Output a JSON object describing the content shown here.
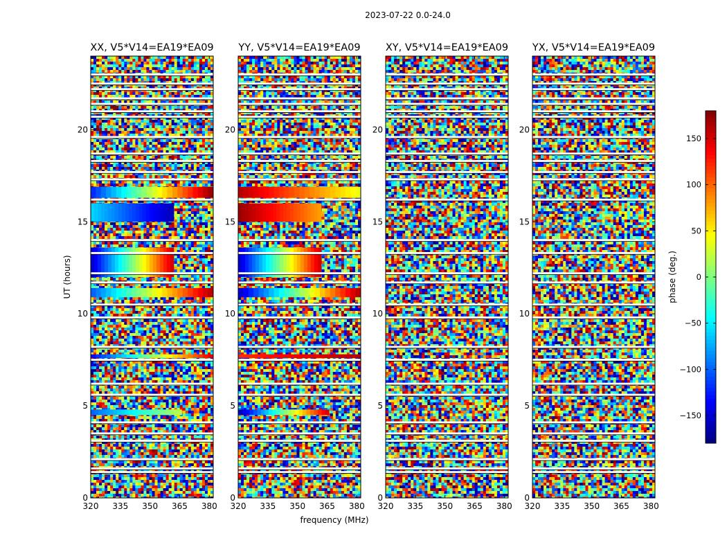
{
  "figure": {
    "suptitle": "2023-07-22 0.0-24.0",
    "xlabel": "frequency (MHz)",
    "ylabel": "UT (hours)",
    "colorbar_label": "phase (deg.)"
  },
  "chart_data": {
    "type": "heatmap",
    "title": "2023-07-22 0.0-24.0",
    "xlabel": "frequency (MHz)",
    "ylabel": "UT (hours)",
    "xlim": [
      320,
      382
    ],
    "ylim": [
      0,
      24
    ],
    "x_ticks": [
      320,
      335,
      350,
      365,
      380
    ],
    "y_ticks": [
      0,
      5,
      10,
      15,
      20
    ],
    "panels": [
      {
        "name": "XX, V5*V14=EA19*EA09",
        "coherent_bands": [
          {
            "t0": 16.3,
            "t1": 16.9,
            "f1": 382,
            "phase_start": -120,
            "phase_end": 170
          },
          {
            "t0": 15.0,
            "t1": 16.0,
            "f1": 362,
            "phase_start": -60,
            "phase_end": -160
          },
          {
            "t0": 12.0,
            "t1": 13.6,
            "f1": 362,
            "phase_start": -150,
            "phase_end": 150
          },
          {
            "t0": 10.9,
            "t1": 11.4,
            "f1": 382,
            "phase_start": -100,
            "phase_end": 160
          },
          {
            "t0": 7.6,
            "t1": 7.8,
            "f1": 382,
            "phase_start": -130,
            "phase_end": 140
          },
          {
            "t0": 4.5,
            "t1": 4.8,
            "f1": 366,
            "phase_start": -100,
            "phase_end": 20
          }
        ],
        "flagged_rows": [
          23.0,
          22.5,
          22.2,
          21.7,
          21.4,
          21.0,
          20.7,
          19.6,
          18.7,
          18.3,
          17.7,
          17.3,
          16.2,
          14.0,
          13.3,
          12.2,
          11.7,
          10.5,
          9.8,
          8.2,
          7.5,
          6.2,
          5.6,
          4.1,
          3.5,
          3.1,
          2.1,
          1.6,
          1.4
        ]
      },
      {
        "name": "YY, V5*V14=EA19*EA09",
        "coherent_bands": [
          {
            "t0": 16.3,
            "t1": 16.9,
            "f1": 382,
            "phase_start": 160,
            "phase_end": 40
          },
          {
            "t0": 15.0,
            "t1": 16.0,
            "f1": 362,
            "phase_start": 170,
            "phase_end": 80
          },
          {
            "t0": 12.0,
            "t1": 13.6,
            "f1": 362,
            "phase_start": -150,
            "phase_end": 150
          },
          {
            "t0": 10.9,
            "t1": 11.4,
            "f1": 382,
            "phase_start": -150,
            "phase_end": 160
          },
          {
            "t0": 7.6,
            "t1": 7.8,
            "f1": 382,
            "phase_start": 120,
            "phase_end": 160
          },
          {
            "t0": 4.5,
            "t1": 4.8,
            "f1": 366,
            "phase_start": -160,
            "phase_end": 150
          }
        ],
        "flagged_rows": [
          23.0,
          22.5,
          22.2,
          21.7,
          21.4,
          21.0,
          20.7,
          19.6,
          18.7,
          18.3,
          17.7,
          17.3,
          16.2,
          14.0,
          13.3,
          12.2,
          11.7,
          10.5,
          9.8,
          8.2,
          7.5,
          6.2,
          5.6,
          4.1,
          3.5,
          3.1,
          2.1,
          1.6,
          1.4
        ]
      },
      {
        "name": "XY, V5*V14=EA19*EA09",
        "coherent_bands": [],
        "flagged_rows": [
          23.0,
          22.5,
          22.2,
          21.7,
          21.4,
          21.0,
          20.7,
          19.6,
          18.7,
          18.3,
          17.7,
          17.3,
          16.2,
          14.0,
          13.3,
          12.2,
          11.7,
          10.5,
          9.8,
          8.2,
          7.5,
          6.2,
          5.6,
          4.1,
          3.5,
          3.1,
          2.1,
          1.6,
          1.4
        ]
      },
      {
        "name": "YX, V5*V14=EA19*EA09",
        "coherent_bands": [],
        "flagged_rows": [
          23.0,
          22.5,
          22.2,
          21.7,
          21.4,
          21.0,
          20.7,
          19.6,
          18.7,
          18.3,
          17.7,
          17.3,
          16.2,
          14.0,
          13.3,
          12.2,
          11.7,
          10.5,
          9.8,
          8.2,
          7.5,
          6.2,
          5.6,
          4.1,
          3.5,
          3.1,
          2.1,
          1.6,
          1.4
        ]
      }
    ],
    "colorbar": {
      "label": "phase (deg.)",
      "range": [
        -180,
        180
      ],
      "ticks": [
        150,
        100,
        50,
        0,
        -50,
        -100,
        -150
      ],
      "tick_labels": [
        "150",
        "100",
        "50",
        "0",
        "−50",
        "−100",
        "−150"
      ],
      "colormap": "jet"
    }
  }
}
